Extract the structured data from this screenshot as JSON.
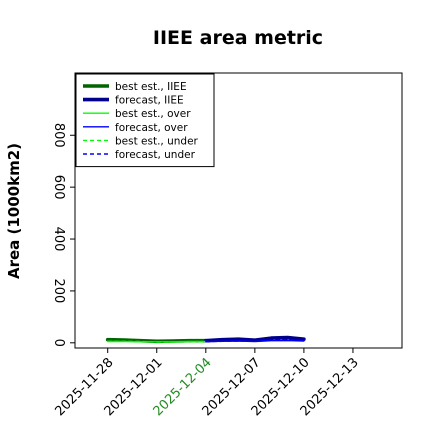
{
  "chart_data": {
    "type": "line",
    "title": "IIEE area metric",
    "xlabel": "",
    "ylabel": "Area (1000km2)",
    "ylim": [
      -20,
      1040
    ],
    "xlim": [
      "2025-11-26",
      "2025-12-16"
    ],
    "grid": false,
    "legend_placement": "top-left",
    "yticks": [
      0,
      200,
      400,
      600,
      800
    ],
    "xticks": [
      "2025-11-28",
      "2025-12-01",
      "2025-12-04",
      "2025-12-07",
      "2025-12-10",
      "2025-12-13"
    ],
    "highlight_xtick": "2025-12-04",
    "highlight_color": "#228B22",
    "series": [
      {
        "name": "best est., IIEE",
        "color": "#006400",
        "style": "solid",
        "weight": "thick",
        "x": [
          "2025-11-28",
          "2025-11-29",
          "2025-11-30",
          "2025-12-01",
          "2025-12-02",
          "2025-12-03",
          "2025-12-04"
        ],
        "values": [
          12,
          11,
          8,
          6,
          7,
          8,
          8
        ]
      },
      {
        "name": "forecast, IIEE",
        "color": "#00008B",
        "style": "solid",
        "weight": "thick",
        "x": [
          "2025-12-04",
          "2025-12-05",
          "2025-12-06",
          "2025-12-07",
          "2025-12-08",
          "2025-12-09",
          "2025-12-10"
        ],
        "values": [
          8,
          12,
          14,
          10,
          18,
          20,
          14
        ]
      },
      {
        "name": "best est., over",
        "color": "#00FF00",
        "style": "solid",
        "weight": "thin",
        "x": [
          "2025-11-28",
          "2025-11-29",
          "2025-11-30",
          "2025-12-01",
          "2025-12-02",
          "2025-12-03",
          "2025-12-04"
        ],
        "values": [
          5,
          5,
          4,
          4,
          4,
          5,
          5
        ]
      },
      {
        "name": "forecast, over",
        "color": "#0000FF",
        "style": "solid",
        "weight": "thin",
        "x": [
          "2025-12-04",
          "2025-12-05",
          "2025-12-06",
          "2025-12-07",
          "2025-12-08",
          "2025-12-09",
          "2025-12-10"
        ],
        "values": [
          5,
          6,
          7,
          5,
          8,
          9,
          7
        ]
      },
      {
        "name": "best est., under",
        "color": "#00FF00",
        "style": "dashed",
        "weight": "thin",
        "x": [
          "2025-11-28",
          "2025-11-29",
          "2025-11-30",
          "2025-12-01",
          "2025-12-02",
          "2025-12-03",
          "2025-12-04"
        ],
        "values": [
          6,
          6,
          5,
          3,
          3,
          4,
          4
        ]
      },
      {
        "name": "forecast, under",
        "color": "#0000FF",
        "style": "dashed",
        "weight": "thin",
        "x": [
          "2025-12-04",
          "2025-12-05",
          "2025-12-06",
          "2025-12-07",
          "2025-12-08",
          "2025-12-09",
          "2025-12-10"
        ],
        "values": [
          4,
          6,
          7,
          6,
          10,
          11,
          8
        ]
      }
    ]
  }
}
